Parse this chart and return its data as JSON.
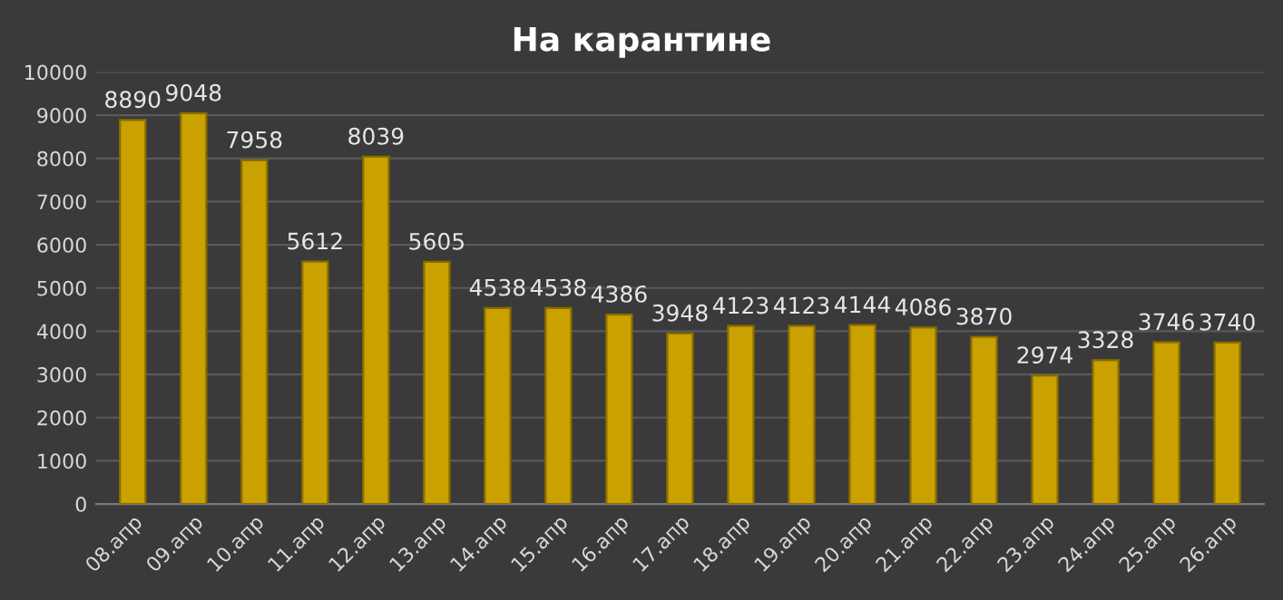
{
  "chart_data": {
    "type": "bar",
    "title": "На карантине",
    "categories": [
      "08.апр",
      "09.апр",
      "10.апр",
      "11.апр",
      "12.апр",
      "13.апр",
      "14.апр",
      "15.апр",
      "16.апр",
      "17.апр",
      "18.апр",
      "19.апр",
      "20.апр",
      "21.апр",
      "22.апр",
      "23.апр",
      "24.апр",
      "25.апр",
      "26.апр"
    ],
    "values": [
      8890,
      9048,
      7958,
      5612,
      8039,
      5605,
      4538,
      4538,
      4386,
      3948,
      4123,
      4123,
      4144,
      4086,
      3870,
      2974,
      3328,
      3746,
      3740
    ],
    "color": "#c9a100",
    "ylim": [
      0,
      10000
    ],
    "yticks": [
      0,
      1000,
      2000,
      3000,
      4000,
      5000,
      6000,
      7000,
      8000,
      9000,
      10000
    ],
    "grid": "y",
    "data_labels": true
  }
}
